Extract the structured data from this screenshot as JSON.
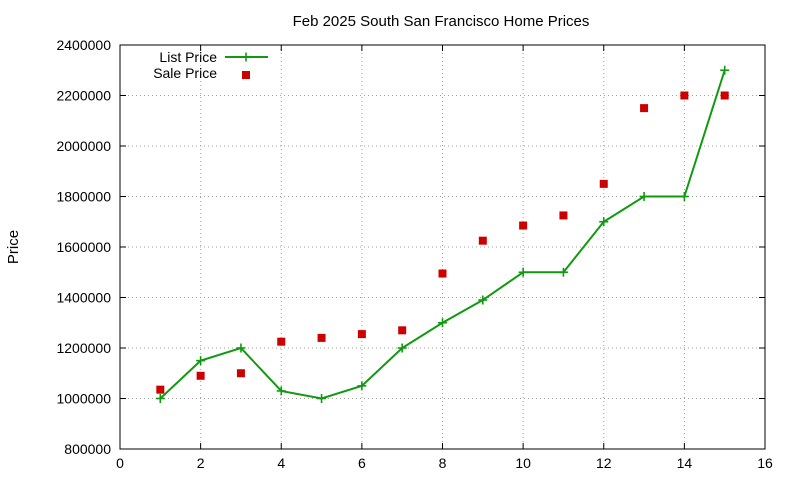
{
  "chart_data": {
    "type": "line",
    "title": "Feb 2025 South San Francisco Home Prices",
    "xlabel": "",
    "ylabel": "Price",
    "xlim": [
      0,
      16
    ],
    "ylim": [
      800000,
      2400000
    ],
    "xticks": [
      0,
      2,
      4,
      6,
      8,
      10,
      12,
      14,
      16
    ],
    "yticks": [
      800000,
      1000000,
      1200000,
      1400000,
      1600000,
      1800000,
      2000000,
      2200000,
      2400000
    ],
    "grid": true,
    "legend_position": "top-left",
    "series": [
      {
        "name": "List Price",
        "style": "line-plus",
        "color": "#119911",
        "x": [
          1,
          2,
          3,
          4,
          5,
          6,
          7,
          8,
          9,
          10,
          11,
          12,
          13,
          14,
          15
        ],
        "y": [
          1000000,
          1150000,
          1200000,
          1030000,
          1000000,
          1050000,
          1200000,
          1300000,
          1390000,
          1500000,
          1500000,
          1700000,
          1800000,
          1800000,
          2300000
        ]
      },
      {
        "name": "Sale Price",
        "style": "square-points",
        "color": "#cc0000",
        "x": [
          1,
          2,
          3,
          4,
          5,
          6,
          7,
          8,
          9,
          10,
          11,
          12,
          13,
          14,
          15
        ],
        "y": [
          1035000,
          1090000,
          1100000,
          1225000,
          1240000,
          1255000,
          1270000,
          1495000,
          1625000,
          1685000,
          1725000,
          1850000,
          2150000,
          2200000,
          2200000
        ]
      }
    ]
  }
}
